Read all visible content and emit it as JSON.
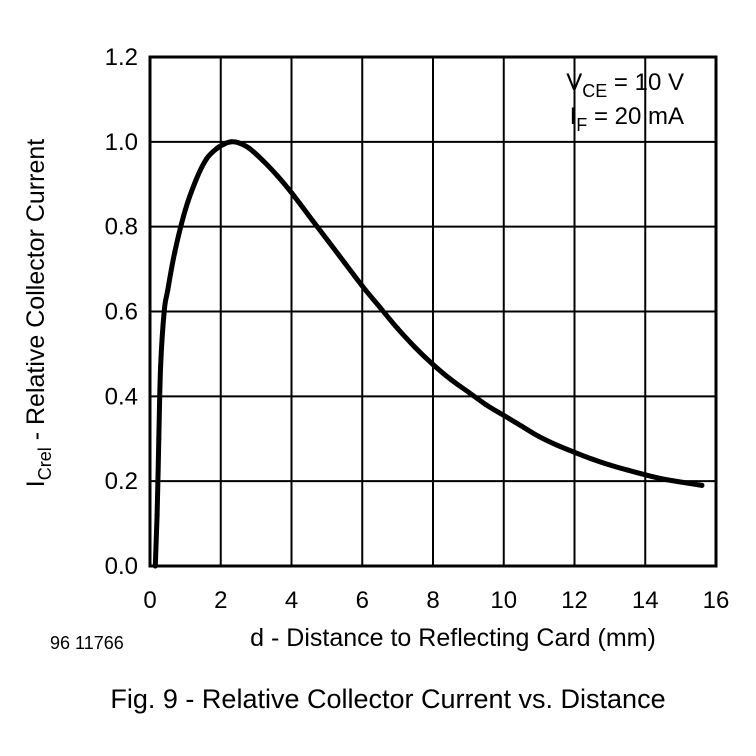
{
  "chart_data": {
    "type": "line",
    "xlabel": "d - Distance to Reflecting Card (mm)",
    "ylabel_main": "I",
    "ylabel_sub": "Crel",
    "ylabel_rest": " - Relative Collector Current",
    "xlim": [
      0,
      16
    ],
    "ylim": [
      0,
      1.2
    ],
    "x_ticks": [
      0,
      2,
      4,
      6,
      8,
      10,
      12,
      14,
      16
    ],
    "x_tick_labels": [
      "0",
      "2",
      "4",
      "6",
      "8",
      "10",
      "12",
      "14",
      "16"
    ],
    "y_ticks": [
      0,
      0.2,
      0.4,
      0.6,
      0.8,
      1.0,
      1.2
    ],
    "y_tick_labels": [
      "0.0",
      "0.2",
      "0.4",
      "0.6",
      "0.8",
      "1.0",
      "1.2"
    ],
    "grid": true,
    "annotations": [
      {
        "main": "V",
        "sub": "CE",
        "rest": " = 10 V"
      },
      {
        "main": "I",
        "sub": "F",
        "rest": " = 20 mA"
      }
    ],
    "figure_id": "96 11766",
    "caption": "Fig. 9 - Relative Collector Current vs. Distance",
    "series": [
      {
        "name": "Relative Collector Current",
        "x": [
          0.15,
          0.2,
          0.25,
          0.3,
          0.4,
          0.5,
          0.7,
          1.0,
          1.3,
          1.6,
          1.9,
          2.1,
          2.3,
          2.5,
          2.8,
          3.2,
          3.6,
          4.0,
          4.5,
          5.0,
          5.5,
          6.0,
          6.5,
          7.0,
          7.5,
          8.0,
          8.5,
          9.0,
          9.5,
          10.0,
          10.5,
          11.0,
          11.5,
          12.0,
          12.5,
          13.0,
          13.5,
          14.0,
          14.5,
          15.0,
          15.6
        ],
        "y": [
          0.0,
          0.12,
          0.3,
          0.47,
          0.6,
          0.65,
          0.74,
          0.84,
          0.91,
          0.96,
          0.985,
          0.995,
          1.0,
          0.998,
          0.985,
          0.955,
          0.92,
          0.88,
          0.825,
          0.77,
          0.715,
          0.66,
          0.61,
          0.56,
          0.515,
          0.475,
          0.44,
          0.41,
          0.38,
          0.355,
          0.33,
          0.305,
          0.285,
          0.268,
          0.252,
          0.238,
          0.226,
          0.215,
          0.205,
          0.198,
          0.19
        ]
      }
    ]
  }
}
